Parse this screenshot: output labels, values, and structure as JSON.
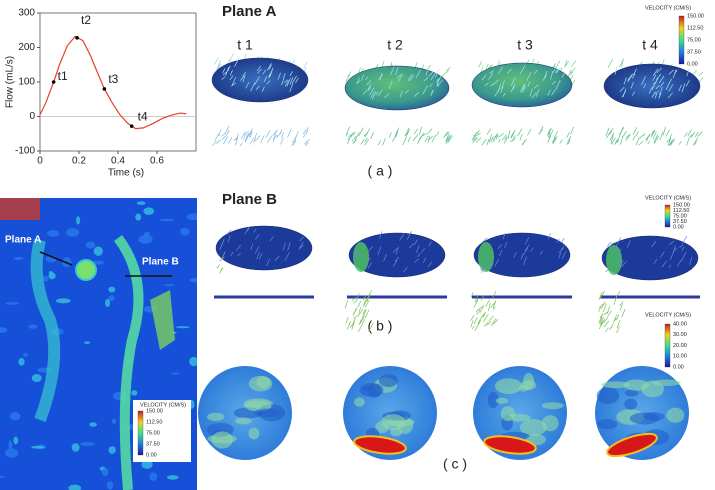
{
  "chart_data": {
    "type": "line",
    "x_label": "Time (s)",
    "y_label": "Flow (mL/s)",
    "x": [
      0,
      0.03,
      0.07,
      0.1,
      0.14,
      0.18,
      0.22,
      0.26,
      0.3,
      0.33,
      0.37,
      0.41,
      0.45,
      0.49,
      0.53,
      0.58,
      0.63,
      0.68,
      0.72,
      0.75
    ],
    "values": [
      5,
      40,
      100,
      150,
      205,
      232,
      220,
      175,
      120,
      80,
      40,
      5,
      -20,
      -35,
      -33,
      -20,
      -5,
      5,
      10,
      8
    ],
    "color": "#e8402a",
    "annotations": [
      {
        "label": "t1",
        "x": 0.07,
        "y": 100
      },
      {
        "label": "t2",
        "x": 0.19,
        "y": 228
      },
      {
        "label": "t3",
        "x": 0.33,
        "y": 80
      },
      {
        "label": "t4",
        "x": 0.47,
        "y": -28
      }
    ],
    "xlim": [
      0,
      0.8
    ],
    "xticks": [
      0,
      0.2,
      0.4,
      0.6
    ],
    "ylim": [
      -100,
      300
    ],
    "yticks": [
      -100,
      0,
      100,
      200,
      300
    ]
  },
  "figure": {
    "plane_a": "Plane A",
    "plane_b": "Plane B",
    "time_labels": [
      "t 1",
      "t 2",
      "t 3",
      "t 4"
    ],
    "panel_labels": [
      "( a )",
      "( b )",
      "( c )"
    ],
    "colorbars": [
      {
        "title": "VELOCITY (CM/S)",
        "ticks": [
          "150.00",
          "112.50",
          "75.00",
          "37.50",
          "0.00"
        ]
      },
      {
        "title": "VELOCITY (CM/S)",
        "ticks": [
          "150.00",
          "112.50",
          "75.00",
          "37.50",
          "0.00"
        ]
      },
      {
        "title": "VELOCITY (CM/S)",
        "ticks": [
          "40.00",
          "30.00",
          "20.00",
          "10.00",
          "0.00"
        ]
      }
    ],
    "mri": {
      "labels": [
        "Plane A",
        "Plane B"
      ],
      "colorbar": {
        "title": "VELOCITY (CM/S)",
        "ticks": [
          "150.00",
          "112.50",
          "75.00",
          "37.50",
          "0.00"
        ]
      }
    }
  }
}
